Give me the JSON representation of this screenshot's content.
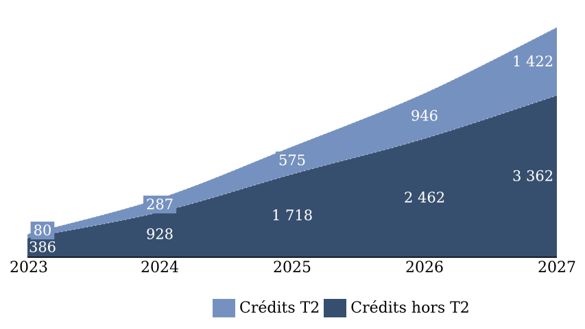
{
  "chart_data": {
    "type": "area",
    "stacked": true,
    "title": "",
    "xlabel": "",
    "ylabel": "",
    "categories": [
      "2023",
      "2024",
      "2025",
      "2026",
      "2027"
    ],
    "series": [
      {
        "name": "Crédits hors T2",
        "values": [
          386,
          928,
          1718,
          2462,
          3362
        ],
        "labels": [
          "386",
          "928",
          "1 718",
          "2 462",
          "3 362"
        ],
        "color": "#374F6E",
        "label_color": "#FFFFFF"
      },
      {
        "name": "Crédits T2",
        "values": [
          80,
          287,
          575,
          946,
          1422
        ],
        "labels": [
          "80",
          "287",
          "575",
          "946",
          "1 422"
        ],
        "color": "#7591BF",
        "label_color": "#FFFFFF"
      }
    ],
    "totals": [
      466,
      1215,
      2293,
      3408,
      4784
    ],
    "ylim": [
      0,
      4784
    ],
    "grid": false,
    "legend_position": "bottom",
    "axis_line_color": "#111A27",
    "boundary_stroke": "#FFFFFF"
  },
  "legend": {
    "items": [
      {
        "label": "Crédits T2",
        "color": "#7591BF"
      },
      {
        "label": "Crédits hors T2",
        "color": "#374F6E"
      }
    ]
  }
}
